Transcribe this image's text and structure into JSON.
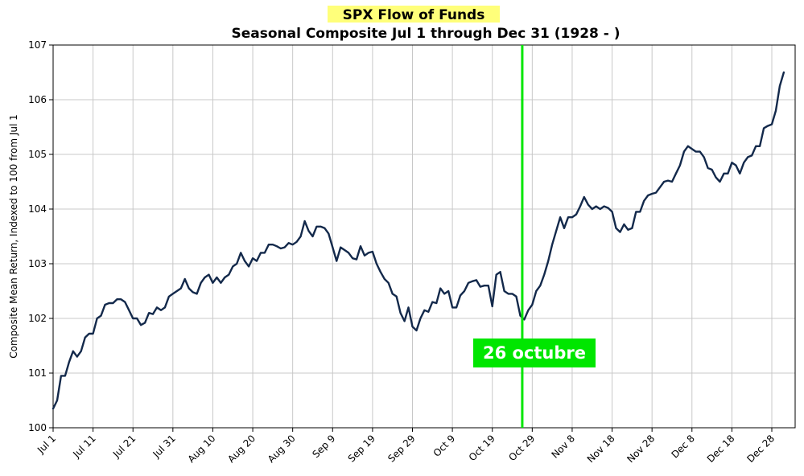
{
  "chart_data": {
    "type": "line",
    "title": "SPX Flow of Funds",
    "subtitle": "Seasonal Composite Jul 1 through Dec 31 (1928 - )",
    "ylabel": "Composite Mean Return, Indexed to 100 from Jul 1",
    "xlabel": "",
    "ylim": [
      100,
      107
    ],
    "xlim": [
      0,
      182
    ],
    "y_ticks": [
      "100",
      "101",
      "102",
      "103",
      "104",
      "105",
      "106",
      "107"
    ],
    "x_ticks": [
      {
        "pos": 0,
        "label": "Jul 1"
      },
      {
        "pos": 10,
        "label": "Jul 11"
      },
      {
        "pos": 20,
        "label": "Jul 21"
      },
      {
        "pos": 30,
        "label": "Jul 31"
      },
      {
        "pos": 40,
        "label": "Aug 10"
      },
      {
        "pos": 50,
        "label": "Aug 20"
      },
      {
        "pos": 60,
        "label": "Aug 30"
      },
      {
        "pos": 70,
        "label": "Sep 9"
      },
      {
        "pos": 80,
        "label": "Sep 19"
      },
      {
        "pos": 90,
        "label": "Sep 29"
      },
      {
        "pos": 100,
        "label": "Oct 9"
      },
      {
        "pos": 110,
        "label": "Oct 19"
      },
      {
        "pos": 120,
        "label": "Oct 29"
      },
      {
        "pos": 130,
        "label": "Nov 8"
      },
      {
        "pos": 140,
        "label": "Nov 18"
      },
      {
        "pos": 150,
        "label": "Nov 28"
      },
      {
        "pos": 160,
        "label": "Dec 8"
      },
      {
        "pos": 170,
        "label": "Dec 18"
      },
      {
        "pos": 180,
        "label": "Dec 28"
      }
    ],
    "grid": true,
    "series": [
      {
        "name": "Seasonal Composite",
        "color": "#13294b",
        "points": [
          [
            0,
            100.35
          ],
          [
            1,
            100.5
          ],
          [
            2,
            100.95
          ],
          [
            3,
            100.95
          ],
          [
            4,
            101.2
          ],
          [
            5,
            101.4
          ],
          [
            6,
            101.3
          ],
          [
            7,
            101.4
          ],
          [
            8,
            101.65
          ],
          [
            9,
            101.72
          ],
          [
            10,
            101.72
          ],
          [
            11,
            102.0
          ],
          [
            12,
            102.05
          ],
          [
            13,
            102.25
          ],
          [
            14,
            102.28
          ],
          [
            15,
            102.28
          ],
          [
            16,
            102.35
          ],
          [
            17,
            102.35
          ],
          [
            18,
            102.3
          ],
          [
            19,
            102.15
          ],
          [
            20,
            102.0
          ],
          [
            21,
            102.0
          ],
          [
            22,
            101.88
          ],
          [
            23,
            101.92
          ],
          [
            24,
            102.1
          ],
          [
            25,
            102.08
          ],
          [
            26,
            102.2
          ],
          [
            27,
            102.15
          ],
          [
            28,
            102.2
          ],
          [
            29,
            102.4
          ],
          [
            30,
            102.45
          ],
          [
            31,
            102.5
          ],
          [
            32,
            102.55
          ],
          [
            33,
            102.72
          ],
          [
            34,
            102.55
          ],
          [
            35,
            102.48
          ],
          [
            36,
            102.45
          ],
          [
            37,
            102.65
          ],
          [
            38,
            102.75
          ],
          [
            39,
            102.8
          ],
          [
            40,
            102.65
          ],
          [
            41,
            102.75
          ],
          [
            42,
            102.65
          ],
          [
            43,
            102.75
          ],
          [
            44,
            102.8
          ],
          [
            45,
            102.95
          ],
          [
            46,
            103.0
          ],
          [
            47,
            103.2
          ],
          [
            48,
            103.05
          ],
          [
            49,
            102.95
          ],
          [
            50,
            103.1
          ],
          [
            51,
            103.05
          ],
          [
            52,
            103.2
          ],
          [
            53,
            103.2
          ],
          [
            54,
            103.35
          ],
          [
            55,
            103.35
          ],
          [
            56,
            103.32
          ],
          [
            57,
            103.28
          ],
          [
            58,
            103.3
          ],
          [
            59,
            103.38
          ],
          [
            60,
            103.35
          ],
          [
            61,
            103.4
          ],
          [
            62,
            103.5
          ],
          [
            63,
            103.78
          ],
          [
            64,
            103.6
          ],
          [
            65,
            103.5
          ],
          [
            66,
            103.68
          ],
          [
            67,
            103.68
          ],
          [
            68,
            103.65
          ],
          [
            69,
            103.55
          ],
          [
            70,
            103.3
          ],
          [
            71,
            103.05
          ],
          [
            72,
            103.3
          ],
          [
            73,
            103.25
          ],
          [
            74,
            103.2
          ],
          [
            75,
            103.1
          ],
          [
            76,
            103.08
          ],
          [
            77,
            103.32
          ],
          [
            78,
            103.15
          ],
          [
            79,
            103.2
          ],
          [
            80,
            103.22
          ],
          [
            81,
            103.0
          ],
          [
            82,
            102.85
          ],
          [
            83,
            102.72
          ],
          [
            84,
            102.65
          ],
          [
            85,
            102.45
          ],
          [
            86,
            102.4
          ],
          [
            87,
            102.1
          ],
          [
            88,
            101.95
          ],
          [
            89,
            102.2
          ],
          [
            90,
            101.85
          ],
          [
            91,
            101.78
          ],
          [
            92,
            102.0
          ],
          [
            93,
            102.15
          ],
          [
            94,
            102.12
          ],
          [
            95,
            102.3
          ],
          [
            96,
            102.28
          ],
          [
            97,
            102.55
          ],
          [
            98,
            102.45
          ],
          [
            99,
            102.5
          ],
          [
            100,
            102.2
          ],
          [
            101,
            102.2
          ],
          [
            102,
            102.42
          ],
          [
            103,
            102.5
          ],
          [
            104,
            102.65
          ],
          [
            105,
            102.68
          ],
          [
            106,
            102.7
          ],
          [
            107,
            102.58
          ],
          [
            108,
            102.6
          ],
          [
            109,
            102.6
          ],
          [
            110,
            102.22
          ],
          [
            111,
            102.8
          ],
          [
            112,
            102.85
          ],
          [
            113,
            102.5
          ],
          [
            114,
            102.45
          ],
          [
            115,
            102.45
          ],
          [
            116,
            102.4
          ],
          [
            117,
            102.05
          ],
          [
            118,
            101.98
          ],
          [
            119,
            102.15
          ],
          [
            120,
            102.25
          ],
          [
            121,
            102.5
          ],
          [
            122,
            102.6
          ],
          [
            123,
            102.8
          ],
          [
            124,
            103.05
          ],
          [
            125,
            103.35
          ],
          [
            126,
            103.6
          ],
          [
            127,
            103.85
          ],
          [
            128,
            103.65
          ],
          [
            129,
            103.85
          ],
          [
            130,
            103.85
          ],
          [
            131,
            103.9
          ],
          [
            132,
            104.05
          ],
          [
            133,
            104.22
          ],
          [
            134,
            104.08
          ],
          [
            135,
            104.0
          ],
          [
            136,
            104.05
          ],
          [
            137,
            104.0
          ],
          [
            138,
            104.05
          ],
          [
            139,
            104.02
          ],
          [
            140,
            103.95
          ],
          [
            141,
            103.65
          ],
          [
            142,
            103.58
          ],
          [
            143,
            103.72
          ],
          [
            144,
            103.62
          ],
          [
            145,
            103.65
          ],
          [
            146,
            103.95
          ],
          [
            147,
            103.95
          ],
          [
            148,
            104.15
          ],
          [
            149,
            104.25
          ],
          [
            150,
            104.28
          ],
          [
            151,
            104.3
          ],
          [
            152,
            104.4
          ],
          [
            153,
            104.5
          ],
          [
            154,
            104.52
          ],
          [
            155,
            104.5
          ],
          [
            156,
            104.65
          ],
          [
            157,
            104.8
          ],
          [
            158,
            105.05
          ],
          [
            159,
            105.15
          ],
          [
            160,
            105.1
          ],
          [
            161,
            105.05
          ],
          [
            162,
            105.05
          ],
          [
            163,
            104.95
          ],
          [
            164,
            104.75
          ],
          [
            165,
            104.72
          ],
          [
            166,
            104.58
          ],
          [
            167,
            104.5
          ],
          [
            168,
            104.65
          ],
          [
            169,
            104.65
          ],
          [
            170,
            104.85
          ],
          [
            171,
            104.8
          ],
          [
            172,
            104.65
          ],
          [
            173,
            104.85
          ],
          [
            174,
            104.95
          ],
          [
            175,
            104.98
          ],
          [
            176,
            105.15
          ],
          [
            177,
            105.15
          ],
          [
            178,
            105.48
          ],
          [
            179,
            105.52
          ],
          [
            180,
            105.55
          ],
          [
            181,
            105.8
          ],
          [
            182,
            106.25
          ],
          [
            183,
            106.5
          ]
        ]
      }
    ],
    "marker": {
      "x": 117.5,
      "label": "26 octubre",
      "color": "#00e600"
    }
  }
}
